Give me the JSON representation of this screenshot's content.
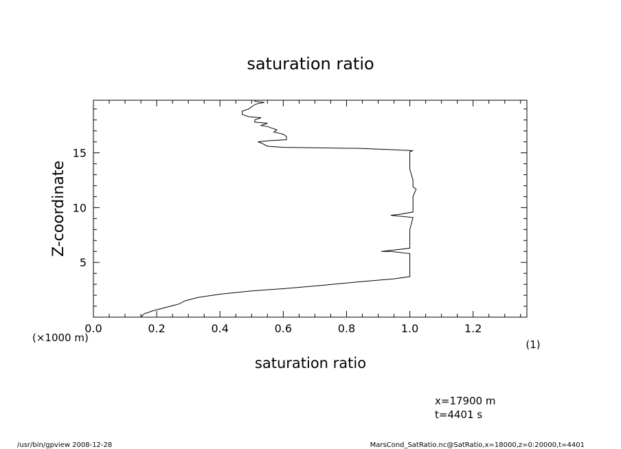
{
  "chart_data": {
    "type": "line",
    "title": "saturation ratio",
    "xlabel": "saturation ratio",
    "xunit": "(1)",
    "ylabel": "Z-coordinate",
    "yunit": "(×1000 m)",
    "xlim": [
      0.0,
      1.37
    ],
    "ylim": [
      0.0,
      19.8
    ],
    "xticks": [
      {
        "value": 0.0,
        "label": "0.0"
      },
      {
        "value": 0.2,
        "label": "0.2"
      },
      {
        "value": 0.4,
        "label": "0.4"
      },
      {
        "value": 0.6,
        "label": "0.6"
      },
      {
        "value": 0.8,
        "label": "0.8"
      },
      {
        "value": 1.0,
        "label": "1.0"
      },
      {
        "value": 1.2,
        "label": "1.2"
      }
    ],
    "yticks": [
      {
        "value": 5,
        "label": "5"
      },
      {
        "value": 10,
        "label": "10"
      },
      {
        "value": 15,
        "label": "15"
      }
    ],
    "grid": false,
    "series": [
      {
        "color": "#000000",
        "points": [
          [
            0.15,
            0.0
          ],
          [
            0.16,
            0.3
          ],
          [
            0.19,
            0.6
          ],
          [
            0.23,
            0.9
          ],
          [
            0.27,
            1.2
          ],
          [
            0.29,
            1.5
          ],
          [
            0.33,
            1.8
          ],
          [
            0.4,
            2.1
          ],
          [
            0.5,
            2.4
          ],
          [
            0.6,
            2.6
          ],
          [
            0.72,
            2.9
          ],
          [
            0.83,
            3.2
          ],
          [
            0.95,
            3.5
          ],
          [
            1.0,
            3.7
          ],
          [
            1.0,
            4.2
          ],
          [
            1.0,
            5.0
          ],
          [
            1.0,
            5.8
          ],
          [
            0.94,
            6.0
          ],
          [
            0.91,
            6.0
          ],
          [
            1.0,
            6.3
          ],
          [
            1.0,
            7.0
          ],
          [
            1.0,
            8.0
          ],
          [
            1.01,
            9.1
          ],
          [
            0.94,
            9.3
          ],
          [
            0.97,
            9.4
          ],
          [
            1.01,
            9.6
          ],
          [
            1.01,
            10.3
          ],
          [
            1.01,
            11.0
          ],
          [
            1.02,
            11.7
          ],
          [
            1.01,
            11.9
          ],
          [
            1.01,
            12.5
          ],
          [
            1.0,
            13.5
          ],
          [
            1.0,
            14.5
          ],
          [
            1.0,
            15.1
          ],
          [
            1.01,
            15.2
          ],
          [
            0.85,
            15.4
          ],
          [
            0.6,
            15.5
          ],
          [
            0.55,
            15.6
          ],
          [
            0.53,
            15.9
          ],
          [
            0.52,
            16.0
          ],
          [
            0.55,
            16.1
          ],
          [
            0.61,
            16.2
          ],
          [
            0.61,
            16.5
          ],
          [
            0.6,
            16.7
          ],
          [
            0.57,
            16.9
          ],
          [
            0.58,
            17.1
          ],
          [
            0.55,
            17.4
          ],
          [
            0.53,
            17.5
          ],
          [
            0.55,
            17.7
          ],
          [
            0.51,
            17.8
          ],
          [
            0.51,
            18.0
          ],
          [
            0.53,
            18.2
          ],
          [
            0.49,
            18.3
          ],
          [
            0.47,
            18.5
          ],
          [
            0.47,
            18.8
          ],
          [
            0.49,
            19.0
          ],
          [
            0.5,
            19.2
          ],
          [
            0.51,
            19.4
          ],
          [
            0.52,
            19.5
          ],
          [
            0.54,
            19.6
          ],
          [
            0.51,
            19.7
          ],
          [
            0.51,
            19.8
          ]
        ]
      }
    ],
    "annotations": [
      "x=17900 m",
      "t=4401 s"
    ]
  },
  "footer": {
    "left": "/usr/bin/gpview  2008-12-28",
    "right": "MarsCond_SatRatio.nc@SatRatio,x=18000,z=0:20000,t=4401"
  }
}
